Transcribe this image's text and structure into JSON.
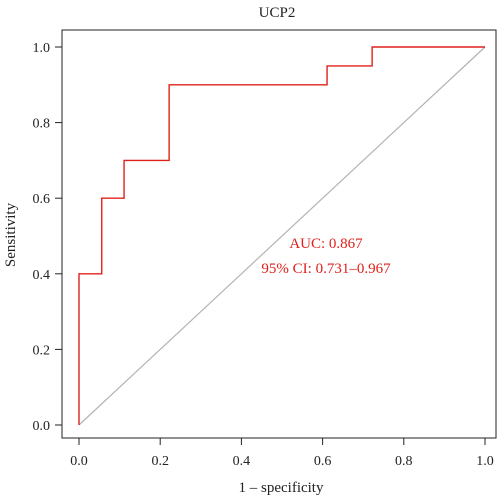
{
  "chart_data": {
    "type": "line",
    "title": "UCP2",
    "xlabel": "1 – specificity",
    "ylabel": "Sensitivity",
    "xlim": [
      0,
      1
    ],
    "ylim": [
      0,
      1
    ],
    "x_ticks": [
      "0.0",
      "0.2",
      "0.4",
      "0.6",
      "0.8",
      "1.0"
    ],
    "y_ticks": [
      "0.0",
      "0.2",
      "0.4",
      "0.6",
      "0.8",
      "1.0"
    ],
    "grid": false,
    "series": [
      {
        "color": "#e0201b",
        "x": [
          0.0,
          0.0,
          0.056,
          0.056,
          0.111,
          0.111,
          0.222,
          0.222,
          0.611,
          0.611,
          0.722,
          0.722,
          1.0
        ],
        "y": [
          0.0,
          0.4,
          0.4,
          0.6,
          0.6,
          0.7,
          0.7,
          0.9,
          0.9,
          0.95,
          0.95,
          1.0,
          1.0
        ]
      }
    ],
    "reference_line": {
      "x": [
        0,
        1
      ],
      "y": [
        0,
        1
      ],
      "color": "#b3b3b3"
    },
    "annotations": {
      "auc": "AUC: 0.867",
      "ci": "95% CI: 0.731–0.967",
      "color": "#e0201b"
    }
  }
}
